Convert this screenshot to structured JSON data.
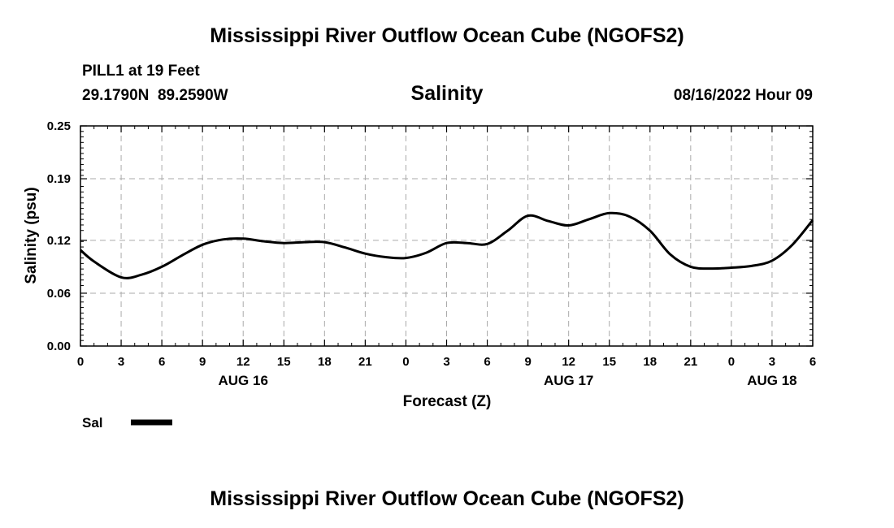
{
  "page_title": "Mississippi River Outflow Ocean Cube (NGOFS2)",
  "footer_title": "Mississippi River Outflow Ocean Cube (NGOFS2)",
  "station": {
    "name_line": "PILL1 at 19 Feet",
    "coords_line": "29.1790N  89.2590W",
    "timestamp": "08/16/2022 Hour 09"
  },
  "chart_data": {
    "type": "line",
    "title": "Salinity",
    "xlabel": "Forecast (Z)",
    "ylabel": "Salinity (psu)",
    "xlim": [
      0,
      54
    ],
    "ylim": [
      0.0,
      0.25
    ],
    "y_ticks": [
      0.0,
      0.06,
      0.12,
      0.19,
      0.25
    ],
    "y_tick_labels": [
      "0.00",
      "0.06",
      "0.12",
      "0.19",
      "0.25"
    ],
    "x_ticks": [
      0,
      3,
      6,
      9,
      12,
      15,
      18,
      21,
      24,
      27,
      30,
      33,
      36,
      39,
      42,
      45,
      48,
      51,
      54
    ],
    "x_tick_labels": [
      "0",
      "3",
      "6",
      "9",
      "12",
      "15",
      "18",
      "21",
      "0",
      "3",
      "6",
      "9",
      "12",
      "15",
      "18",
      "21",
      "0",
      "3",
      "6"
    ],
    "date_labels": [
      {
        "x": 12,
        "label": "AUG 16"
      },
      {
        "x": 36,
        "label": "AUG 17"
      },
      {
        "x": 51,
        "label": "AUG 18"
      }
    ],
    "grid": true,
    "series": [
      {
        "name": "Sal",
        "color": "#000000",
        "x": [
          0,
          1,
          3,
          4.5,
          6,
          7.5,
          9,
          10.5,
          12,
          13.5,
          15,
          16.5,
          18,
          19.5,
          21,
          22.5,
          24,
          25.5,
          27,
          28.5,
          30,
          31.5,
          33,
          34.5,
          36,
          37.5,
          39,
          40.5,
          42,
          43.5,
          45,
          46.5,
          48,
          49.5,
          51,
          52.5,
          54
        ],
        "values": [
          0.109,
          0.096,
          0.078,
          0.081,
          0.09,
          0.103,
          0.115,
          0.121,
          0.122,
          0.119,
          0.117,
          0.118,
          0.118,
          0.112,
          0.105,
          0.101,
          0.1,
          0.106,
          0.117,
          0.117,
          0.116,
          0.131,
          0.148,
          0.142,
          0.137,
          0.144,
          0.151,
          0.147,
          0.131,
          0.104,
          0.09,
          0.088,
          0.089,
          0.091,
          0.097,
          0.115,
          0.143
        ]
      }
    ],
    "legend": [
      {
        "label": "Sal",
        "color": "#000000"
      }
    ]
  }
}
